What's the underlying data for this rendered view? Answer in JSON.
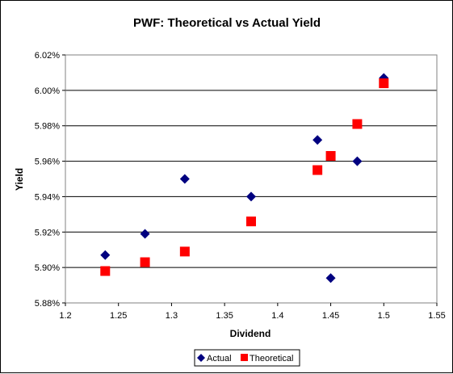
{
  "chart_data": {
    "type": "scatter",
    "title": "PWF: Theoretical vs Actual Yield",
    "xlabel": "Dividend",
    "ylabel": "Yield",
    "xlim": [
      1.2,
      1.55
    ],
    "ylim": [
      5.88,
      6.02
    ],
    "x_ticks": [
      "1.2",
      "1.25",
      "1.3",
      "1.35",
      "1.4",
      "1.45",
      "1.5",
      "1.55"
    ],
    "y_ticks": [
      "5.88%",
      "5.90%",
      "5.92%",
      "5.94%",
      "5.96%",
      "5.98%",
      "6.00%",
      "6.02%"
    ],
    "grid": "horizontal",
    "legend_position": "bottom",
    "series": [
      {
        "name": "Actual",
        "marker": "diamond",
        "color": "#000080",
        "points": [
          {
            "x": 1.2375,
            "y": 5.907
          },
          {
            "x": 1.275,
            "y": 5.919
          },
          {
            "x": 1.3125,
            "y": 5.95
          },
          {
            "x": 1.375,
            "y": 5.94
          },
          {
            "x": 1.4375,
            "y": 5.972
          },
          {
            "x": 1.45,
            "y": 5.894
          },
          {
            "x": 1.475,
            "y": 5.96
          },
          {
            "x": 1.5,
            "y": 6.007
          }
        ]
      },
      {
        "name": "Theoretical",
        "marker": "square",
        "color": "#FF0000",
        "points": [
          {
            "x": 1.2375,
            "y": 5.898
          },
          {
            "x": 1.275,
            "y": 5.903
          },
          {
            "x": 1.3125,
            "y": 5.909
          },
          {
            "x": 1.375,
            "y": 5.926
          },
          {
            "x": 1.4375,
            "y": 5.955
          },
          {
            "x": 1.45,
            "y": 5.963
          },
          {
            "x": 1.475,
            "y": 5.981
          },
          {
            "x": 1.5,
            "y": 6.004
          }
        ]
      }
    ]
  }
}
